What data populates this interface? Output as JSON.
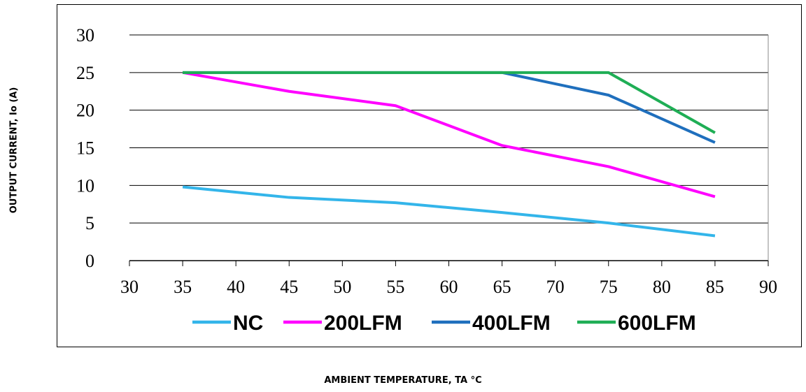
{
  "chart_data": {
    "type": "line",
    "xlabel": "AMBIENT TEMPERATURE, TA °C",
    "ylabel": "OUTPUT CURRENT, Io (A)",
    "xlim": [
      30,
      90
    ],
    "ylim": [
      0,
      30
    ],
    "xticks": [
      "30",
      "35",
      "40",
      "45",
      "50",
      "55",
      "60",
      "65",
      "70",
      "75",
      "80",
      "85",
      "90"
    ],
    "yticks": [
      "0",
      "5",
      "10",
      "15",
      "20",
      "25",
      "30"
    ],
    "grid": "horizontal",
    "legend": "bottom",
    "x": [
      35,
      45,
      55,
      65,
      75,
      85
    ],
    "series": [
      {
        "name": "NC",
        "color": "#33b5ea",
        "values": [
          9.8,
          8.4,
          7.7,
          6.4,
          5.0,
          3.3
        ]
      },
      {
        "name": "200LFM",
        "color": "#ff00ff",
        "values": [
          25,
          22.5,
          20.6,
          15.3,
          12.5,
          8.5
        ]
      },
      {
        "name": "400LFM",
        "color": "#1f6fbd",
        "values": [
          25,
          25,
          25,
          25,
          22.0,
          15.7
        ]
      },
      {
        "name": "600LFM",
        "color": "#1fae55",
        "values": [
          25,
          25,
          25,
          25,
          25,
          17.0
        ]
      }
    ]
  }
}
